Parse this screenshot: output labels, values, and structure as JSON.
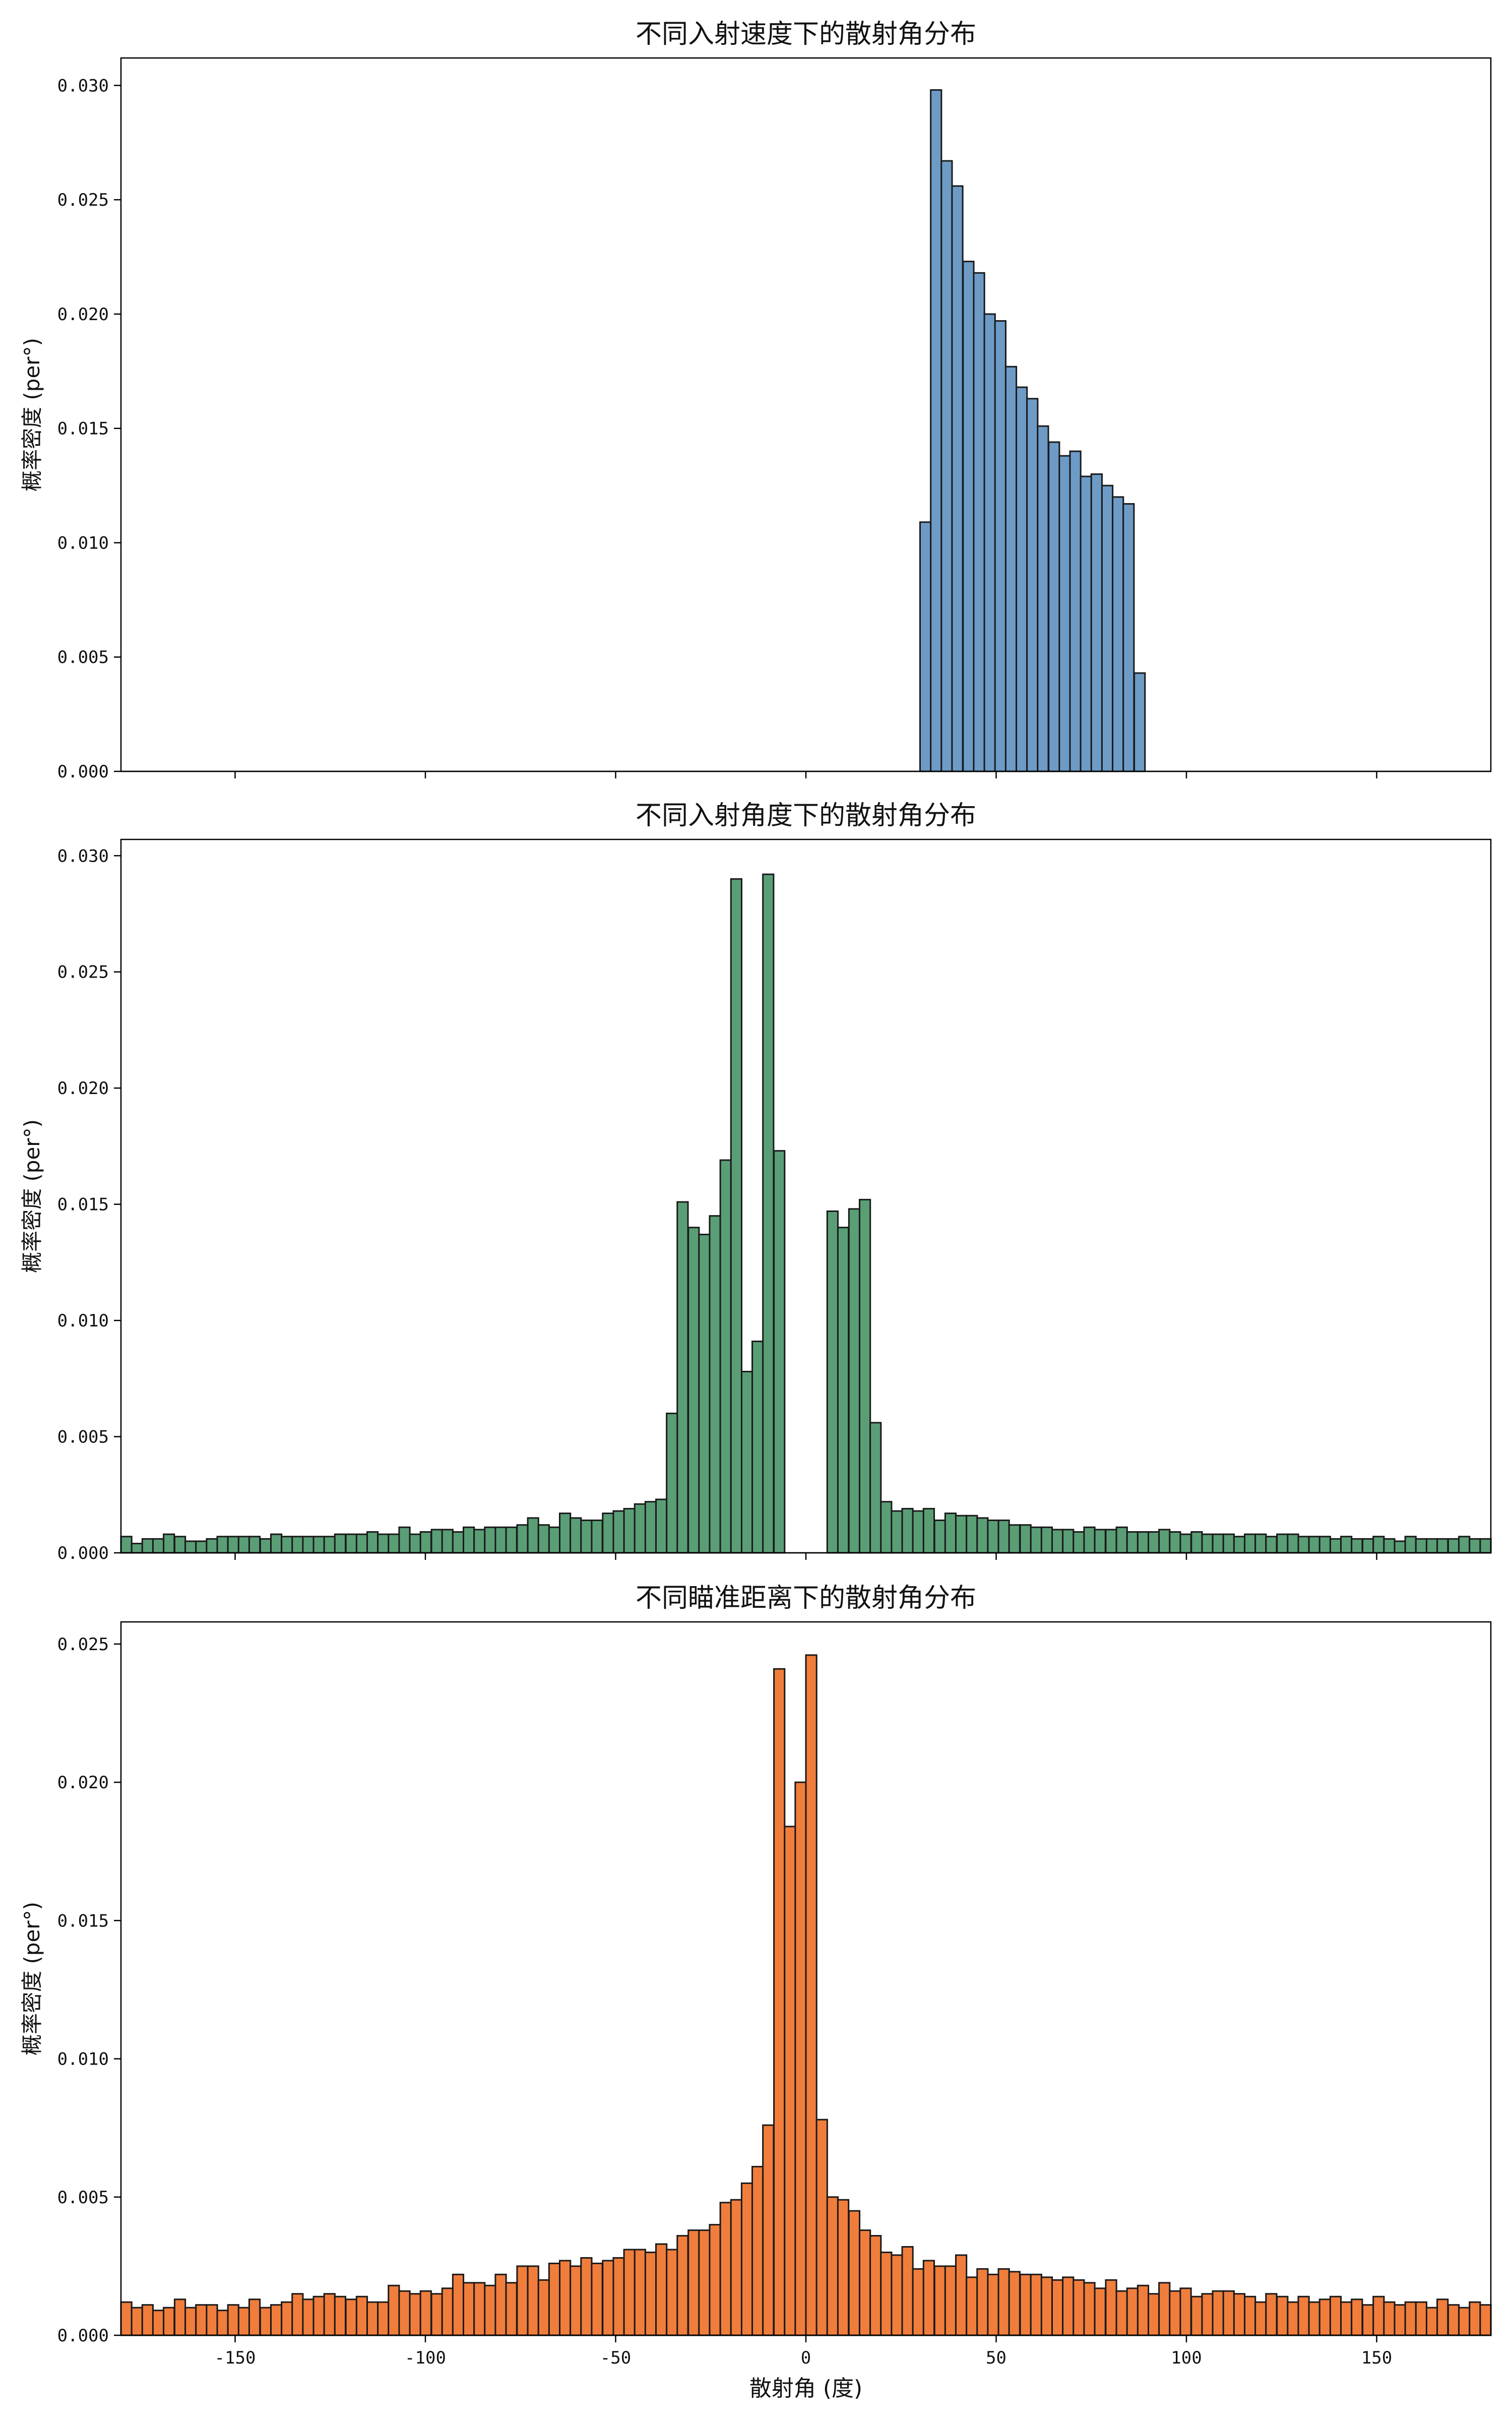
{
  "chart_data": [
    {
      "type": "bar",
      "title": "不同入射速度下的散射角分布",
      "xlabel": "",
      "ylabel": "概率密度 (per°)",
      "xlim": [
        -180,
        180
      ],
      "ylim": [
        0,
        0.0312
      ],
      "yticks": [
        "0.000",
        "0.005",
        "0.010",
        "0.015",
        "0.020",
        "0.025",
        "0.030"
      ],
      "xticks": [],
      "bin_width": 2.8125,
      "color": "#6d9bc6",
      "bins_x": [
        30.0,
        32.8,
        35.6,
        38.4,
        41.3,
        44.1,
        46.9,
        49.7,
        52.5,
        55.3,
        58.1,
        60.9,
        63.8,
        66.6,
        69.4,
        72.2,
        75.0,
        77.8,
        80.6,
        83.4,
        86.3
      ],
      "values": [
        0.0109,
        0.0298,
        0.0267,
        0.0256,
        0.0223,
        0.0218,
        0.02,
        0.0197,
        0.0177,
        0.0168,
        0.0163,
        0.0151,
        0.0144,
        0.0138,
        0.014,
        0.0129,
        0.013,
        0.0125,
        0.012,
        0.0117,
        0.0043
      ],
      "grid": false
    },
    {
      "type": "bar",
      "title": "不同入射角度下的散射角分布",
      "xlabel": "",
      "ylabel": "概率密度 (per°)",
      "xlim": [
        -180,
        180
      ],
      "ylim": [
        0,
        0.0307
      ],
      "yticks": [
        "0.000",
        "0.005",
        "0.010",
        "0.015",
        "0.020",
        "0.025",
        "0.030"
      ],
      "xticks": [],
      "bin_width": 2.8125,
      "color": "#5a9e76",
      "bins_x": [
        -180.0,
        -177.2,
        -174.4,
        -171.6,
        -168.8,
        -165.9,
        -163.1,
        -160.3,
        -157.5,
        -154.7,
        -151.9,
        -149.1,
        -146.3,
        -143.4,
        -140.6,
        -137.8,
        -135.0,
        -132.2,
        -129.4,
        -126.6,
        -123.8,
        -120.9,
        -118.1,
        -115.3,
        -112.5,
        -109.7,
        -106.9,
        -104.1,
        -101.3,
        -98.4,
        -95.6,
        -92.8,
        -90.0,
        -87.2,
        -84.4,
        -81.6,
        -78.8,
        -75.9,
        -73.1,
        -70.3,
        -67.5,
        -64.7,
        -61.9,
        -59.1,
        -56.3,
        -53.4,
        -50.6,
        -47.8,
        -45.0,
        -42.2,
        -39.4,
        -36.6,
        -33.8,
        -30.9,
        -28.1,
        -25.3,
        -22.5,
        -19.7,
        -16.9,
        -14.1,
        -11.3,
        -8.4,
        5.6,
        8.4,
        11.3,
        14.1,
        16.9,
        19.7,
        22.5,
        25.3,
        28.1,
        30.9,
        33.8,
        36.6,
        39.4,
        42.2,
        45.0,
        47.8,
        50.6,
        53.4,
        56.3,
        59.1,
        61.9,
        64.7,
        67.5,
        70.3,
        73.1,
        75.9,
        78.8,
        81.6,
        84.4,
        87.2,
        90.0,
        92.8,
        95.6,
        98.4,
        101.3,
        104.1,
        106.9,
        109.7,
        112.5,
        115.3,
        118.1,
        120.9,
        123.8,
        126.6,
        129.4,
        132.2,
        135.0,
        137.8,
        140.6,
        143.4,
        146.3,
        149.1,
        151.9,
        154.7,
        157.5,
        160.3,
        163.1,
        165.9,
        168.8,
        171.6,
        174.4,
        177.2
      ],
      "values": [
        0.0007,
        0.0004,
        0.0006,
        0.0006,
        0.0008,
        0.0007,
        0.0005,
        0.0005,
        0.0006,
        0.0007,
        0.0007,
        0.0007,
        0.0007,
        0.0006,
        0.0008,
        0.0007,
        0.0007,
        0.0007,
        0.0007,
        0.0007,
        0.0008,
        0.0008,
        0.0008,
        0.0009,
        0.0008,
        0.0008,
        0.0011,
        0.0008,
        0.0009,
        0.001,
        0.001,
        0.0009,
        0.0011,
        0.001,
        0.0011,
        0.0011,
        0.0011,
        0.0012,
        0.0015,
        0.0012,
        0.0011,
        0.0017,
        0.0015,
        0.0014,
        0.0014,
        0.0017,
        0.0018,
        0.0019,
        0.0021,
        0.0022,
        0.0023,
        0.006,
        0.0151,
        0.014,
        0.0137,
        0.0145,
        0.0169,
        0.029,
        0.0078,
        0.0091,
        0.0292,
        0.0173,
        0.0147,
        0.014,
        0.0148,
        0.0152,
        0.0056,
        0.0022,
        0.0018,
        0.0019,
        0.0018,
        0.0019,
        0.0014,
        0.0017,
        0.0016,
        0.0016,
        0.0015,
        0.0014,
        0.0014,
        0.0012,
        0.0012,
        0.0011,
        0.0011,
        0.001,
        0.001,
        0.0009,
        0.0011,
        0.001,
        0.001,
        0.0011,
        0.0009,
        0.0009,
        0.0009,
        0.001,
        0.0009,
        0.0008,
        0.0009,
        0.0008,
        0.0008,
        0.0008,
        0.0007,
        0.0008,
        0.0008,
        0.0007,
        0.0008,
        0.0008,
        0.0007,
        0.0007,
        0.0007,
        0.0006,
        0.0007,
        0.0006,
        0.0006,
        0.0007,
        0.0006,
        0.0005,
        0.0007,
        0.0006,
        0.0006,
        0.0006,
        0.0006,
        0.0007,
        0.0006,
        0.0006
      ],
      "grid": false
    },
    {
      "type": "bar",
      "title": "不同瞄准距离下的散射角分布",
      "xlabel": "散射角 (度)",
      "ylabel": "概率密度 (per°)",
      "xlim": [
        -180,
        180
      ],
      "ylim": [
        0,
        0.0258
      ],
      "yticks": [
        "0.000",
        "0.005",
        "0.010",
        "0.015",
        "0.020",
        "0.025"
      ],
      "xticks": [
        "-150",
        "-100",
        "-50",
        "0",
        "50",
        "100",
        "150"
      ],
      "bin_width": 2.8125,
      "color": "#f07d3c",
      "bins_x": [
        -180.0,
        -177.2,
        -174.4,
        -171.6,
        -168.8,
        -165.9,
        -163.1,
        -160.3,
        -157.5,
        -154.7,
        -151.9,
        -149.1,
        -146.3,
        -143.4,
        -140.6,
        -137.8,
        -135.0,
        -132.2,
        -129.4,
        -126.6,
        -123.8,
        -120.9,
        -118.1,
        -115.3,
        -112.5,
        -109.7,
        -106.9,
        -104.1,
        -101.3,
        -98.4,
        -95.6,
        -92.8,
        -90.0,
        -87.2,
        -84.4,
        -81.6,
        -78.8,
        -75.9,
        -73.1,
        -70.3,
        -67.5,
        -64.7,
        -61.9,
        -59.1,
        -56.3,
        -53.4,
        -50.6,
        -47.8,
        -45.0,
        -42.2,
        -39.4,
        -36.6,
        -33.8,
        -30.9,
        -28.1,
        -25.3,
        -22.5,
        -19.7,
        -16.9,
        -14.1,
        -11.3,
        -8.4,
        -5.6,
        -2.8,
        0.0,
        2.8,
        5.6,
        8.4,
        11.3,
        14.1,
        16.9,
        19.7,
        22.5,
        25.3,
        28.1,
        30.9,
        33.8,
        36.6,
        39.4,
        42.2,
        45.0,
        47.8,
        50.6,
        53.4,
        56.3,
        59.1,
        61.9,
        64.7,
        67.5,
        70.3,
        73.1,
        75.9,
        78.8,
        81.6,
        84.4,
        87.2,
        90.0,
        92.8,
        95.6,
        98.4,
        101.3,
        104.1,
        106.9,
        109.7,
        112.5,
        115.3,
        118.1,
        120.9,
        123.8,
        126.6,
        129.4,
        132.2,
        135.0,
        137.8,
        140.6,
        143.4,
        146.3,
        149.1,
        151.9,
        154.7,
        157.5,
        160.3,
        163.1,
        165.9,
        168.8,
        171.6,
        174.4,
        177.2
      ],
      "values": [
        0.0012,
        0.001,
        0.0011,
        0.0009,
        0.001,
        0.0013,
        0.001,
        0.0011,
        0.0011,
        0.0009,
        0.0011,
        0.001,
        0.0013,
        0.001,
        0.0011,
        0.0012,
        0.0015,
        0.0013,
        0.0014,
        0.0015,
        0.0014,
        0.0013,
        0.0014,
        0.0012,
        0.0012,
        0.0018,
        0.0016,
        0.0015,
        0.0016,
        0.0015,
        0.0017,
        0.0022,
        0.0019,
        0.0019,
        0.0018,
        0.0022,
        0.0019,
        0.0025,
        0.0025,
        0.002,
        0.0026,
        0.0027,
        0.0025,
        0.0028,
        0.0026,
        0.0027,
        0.0028,
        0.0031,
        0.0031,
        0.003,
        0.0033,
        0.0031,
        0.0036,
        0.0038,
        0.0038,
        0.004,
        0.0048,
        0.0049,
        0.0055,
        0.0061,
        0.0076,
        0.0241,
        0.0184,
        0.02,
        0.0246,
        0.0078,
        0.005,
        0.0049,
        0.0045,
        0.0038,
        0.0036,
        0.003,
        0.0029,
        0.0032,
        0.0024,
        0.0027,
        0.0025,
        0.0025,
        0.0029,
        0.0021,
        0.0024,
        0.0022,
        0.0024,
        0.0023,
        0.0022,
        0.0022,
        0.0021,
        0.002,
        0.0021,
        0.002,
        0.0019,
        0.0017,
        0.002,
        0.0016,
        0.0017,
        0.0018,
        0.0015,
        0.0019,
        0.0016,
        0.0017,
        0.0014,
        0.0015,
        0.0016,
        0.0016,
        0.0015,
        0.0014,
        0.0012,
        0.0015,
        0.0014,
        0.0012,
        0.0014,
        0.0012,
        0.0013,
        0.0014,
        0.0012,
        0.0013,
        0.0011,
        0.0014,
        0.0012,
        0.0011,
        0.0012,
        0.0012,
        0.001,
        0.0013,
        0.0011,
        0.001,
        0.0012,
        0.0011,
        0.0012
      ]
    }
  ]
}
